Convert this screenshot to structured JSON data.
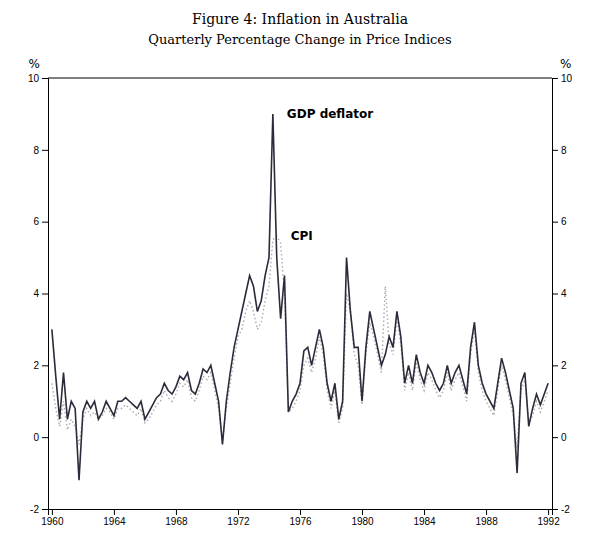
{
  "chart_data": {
    "type": "line",
    "title": "Figure 4: Inflation in Australia",
    "subtitle": "Quarterly Percentage Change in Price Indices",
    "ylabel": "%",
    "y2label": "%",
    "xlim": [
      1959.75,
      1992.25
    ],
    "xticks": [
      1960,
      1964,
      1968,
      1972,
      1976,
      1980,
      1984,
      1988,
      1992
    ],
    "ylim": [
      -2,
      10
    ],
    "yticks": [
      -2,
      0,
      2,
      4,
      6,
      8,
      10
    ],
    "y2lim": [
      -2,
      10
    ],
    "y2ticks": [
      -2,
      0,
      2,
      4,
      6,
      8,
      10
    ],
    "grid": false,
    "x": [
      1960,
      1960.25,
      1960.5,
      1960.75,
      1961,
      1961.25,
      1961.5,
      1961.75,
      1962,
      1962.25,
      1962.5,
      1962.75,
      1963,
      1963.25,
      1963.5,
      1963.75,
      1964,
      1964.25,
      1964.5,
      1964.75,
      1965,
      1965.25,
      1965.5,
      1965.75,
      1966,
      1966.25,
      1966.5,
      1966.75,
      1967,
      1967.25,
      1967.5,
      1967.75,
      1968,
      1968.25,
      1968.5,
      1968.75,
      1969,
      1969.25,
      1969.5,
      1969.75,
      1970,
      1970.25,
      1970.5,
      1970.75,
      1971,
      1971.25,
      1971.5,
      1971.75,
      1972,
      1972.25,
      1972.5,
      1972.75,
      1973,
      1973.25,
      1973.5,
      1973.75,
      1974,
      1974.25,
      1974.5,
      1974.75,
      1975,
      1975.25,
      1975.5,
      1975.75,
      1976,
      1976.25,
      1976.5,
      1976.75,
      1977,
      1977.25,
      1977.5,
      1977.75,
      1978,
      1978.25,
      1978.5,
      1978.75,
      1979,
      1979.25,
      1979.5,
      1979.75,
      1980,
      1980.25,
      1980.5,
      1980.75,
      1981,
      1981.25,
      1981.5,
      1981.75,
      1982,
      1982.25,
      1982.5,
      1982.75,
      1983,
      1983.25,
      1983.5,
      1983.75,
      1984,
      1984.25,
      1984.5,
      1984.75,
      1985,
      1985.25,
      1985.5,
      1985.75,
      1986,
      1986.25,
      1986.5,
      1986.75,
      1987,
      1987.25,
      1987.5,
      1987.75,
      1988,
      1988.25,
      1988.5,
      1988.75,
      1989,
      1989.25,
      1989.5,
      1989.75,
      1990,
      1990.25,
      1990.5,
      1990.75,
      1991,
      1991.25,
      1991.5,
      1991.75,
      1992
    ],
    "series": [
      {
        "name": "CPI",
        "color": "#aaaaaa",
        "line_style": "dotted",
        "values": [
          1.5,
          0.8,
          0.3,
          1.0,
          0.2,
          0.5,
          0.3,
          -0.2,
          0.5,
          0.8,
          0.6,
          0.7,
          0.5,
          0.6,
          0.8,
          0.7,
          0.5,
          0.8,
          0.8,
          0.9,
          0.8,
          0.7,
          0.6,
          0.8,
          0.4,
          0.5,
          0.7,
          0.9,
          1.0,
          1.3,
          1.1,
          1.0,
          1.2,
          1.5,
          1.4,
          1.6,
          1.1,
          1.0,
          1.3,
          1.7,
          1.6,
          1.8,
          1.3,
          0.8,
          -0.1,
          0.8,
          1.5,
          2.2,
          2.8,
          3.0,
          3.5,
          3.8,
          3.5,
          3.0,
          3.2,
          3.8,
          4.2,
          5.5,
          5.6,
          5.4,
          4.0,
          0.7,
          0.8,
          1.0,
          1.3,
          2.0,
          2.2,
          1.8,
          2.2,
          2.8,
          2.3,
          1.3,
          0.8,
          1.3,
          0.4,
          0.8,
          4.0,
          3.5,
          2.3,
          2.0,
          0.9,
          2.3,
          3.2,
          2.8,
          2.3,
          1.8,
          4.2,
          2.6,
          2.3,
          3.3,
          2.6,
          1.3,
          1.8,
          1.3,
          2.1,
          1.6,
          1.3,
          1.8,
          1.6,
          1.3,
          1.1,
          1.3,
          1.8,
          1.3,
          1.6,
          1.8,
          1.4,
          1.0,
          2.3,
          3.0,
          1.8,
          1.3,
          1.0,
          0.8,
          0.6,
          1.3,
          2.0,
          1.6,
          1.1,
          0.6,
          -0.3,
          1.3,
          1.6,
          0.4,
          0.6,
          1.0,
          0.7,
          1.0,
          1.3
        ]
      },
      {
        "name": "GDP deflator",
        "color": "#2b2b3b",
        "line_style": "solid",
        "values": [
          3.0,
          1.7,
          0.5,
          1.8,
          0.5,
          1.0,
          0.8,
          -1.2,
          0.7,
          1.0,
          0.8,
          1.0,
          0.5,
          0.7,
          1.0,
          0.8,
          0.6,
          1.0,
          1.0,
          1.1,
          1.0,
          0.9,
          0.8,
          1.0,
          0.5,
          0.7,
          0.9,
          1.1,
          1.2,
          1.5,
          1.3,
          1.2,
          1.4,
          1.7,
          1.6,
          1.8,
          1.3,
          1.2,
          1.5,
          1.9,
          1.8,
          2.0,
          1.5,
          1.0,
          -0.2,
          1.0,
          1.8,
          2.5,
          3.0,
          3.5,
          4.0,
          4.5,
          4.2,
          3.5,
          3.8,
          4.5,
          5.0,
          9.0,
          5.0,
          3.3,
          4.5,
          0.7,
          1.0,
          1.2,
          1.5,
          2.4,
          2.5,
          2.0,
          2.5,
          3.0,
          2.5,
          1.5,
          1.0,
          1.5,
          0.5,
          1.0,
          5.0,
          3.5,
          2.5,
          2.5,
          1.0,
          2.5,
          3.5,
          3.0,
          2.5,
          2.0,
          2.3,
          2.8,
          2.5,
          3.5,
          2.8,
          1.5,
          2.0,
          1.5,
          2.3,
          1.8,
          1.5,
          2.0,
          1.8,
          1.5,
          1.3,
          1.5,
          2.0,
          1.5,
          1.8,
          2.0,
          1.6,
          1.2,
          2.5,
          3.2,
          2.0,
          1.5,
          1.2,
          1.0,
          0.8,
          1.5,
          2.2,
          1.8,
          1.3,
          0.8,
          -1.0,
          1.5,
          1.8,
          0.3,
          0.8,
          1.2,
          0.9,
          1.2,
          1.5
        ]
      }
    ]
  }
}
